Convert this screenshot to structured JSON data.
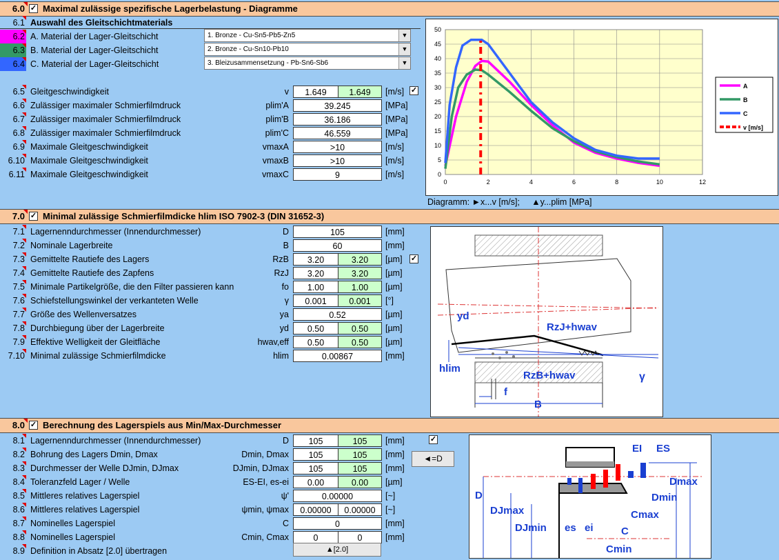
{
  "sec6": {
    "num": "6.0",
    "title": "Maximal zulässige spezifische Lagerbelastung - Diagramme",
    "sub_num": "6.1",
    "sub_title": "Auswahl des Gleitschichtmaterials",
    "materials": [
      {
        "num": "6.2",
        "label": "A. Material der Lager-Gleitschicht",
        "value": "1. Bronze - Cu-Sn5-Pb5-Zn5",
        "color": "#ff00ff"
      },
      {
        "num": "6.3",
        "label": "B. Material der Lager-Gleitschicht",
        "value": "2. Bronze - Cu-Sn10-Pb10",
        "color": "#339966"
      },
      {
        "num": "6.4",
        "label": "C. Material der Lager-Gleitschicht",
        "value": "3. Bleizusammensetzung - Pb-Sn6-Sb6",
        "color": "#3366ff"
      }
    ],
    "rows": [
      {
        "num": "6.5",
        "label": "Gleitgeschwindigkeit",
        "sym": "v",
        "v1": "1.649",
        "v2": "1.649",
        "unit": "[m/s]"
      },
      {
        "num": "6.6",
        "label": "Zulässiger maximaler Schmierfilmdruck",
        "sym": "plim'A",
        "v1": "39.245",
        "unit": "[MPa]"
      },
      {
        "num": "6.7",
        "label": "Zulässiger maximaler Schmierfilmdruck",
        "sym": "plim'B",
        "v1": "36.186",
        "unit": "[MPa]"
      },
      {
        "num": "6.8",
        "label": "Zulässiger maximaler Schmierfilmdruck",
        "sym": "plim'C",
        "v1": "46.559",
        "unit": "[MPa]"
      },
      {
        "num": "6.9",
        "label": "Maximale Gleitgeschwindigkeit",
        "sym": "vmaxA",
        "v1": ">10",
        "unit": "[m/s]"
      },
      {
        "num": "6.10",
        "label": "Maximale Gleitgeschwindigkeit",
        "sym": "vmaxB",
        "v1": ">10",
        "unit": "[m/s]"
      },
      {
        "num": "6.11",
        "label": "Maximale Gleitgeschwindigkeit",
        "sym": "vmaxC",
        "v1": "9",
        "unit": "[m/s]"
      }
    ],
    "diagram_caption": "Diagramm: ►x...v [m/s];     ▲y...plim [MPa]"
  },
  "chart_data": {
    "type": "line",
    "xlim": [
      0,
      12
    ],
    "ylim": [
      0,
      50
    ],
    "x_ticks": [
      "0",
      "2",
      "4",
      "6",
      "8",
      "10",
      "12"
    ],
    "y_ticks": [
      "0",
      "5",
      "10",
      "15",
      "20",
      "25",
      "30",
      "35",
      "40",
      "45",
      "50"
    ],
    "grid": true,
    "legend_position": "right",
    "series": [
      {
        "name": "A",
        "color": "#ff00ff",
        "x": [
          0,
          0.5,
          1.0,
          1.4,
          1.7,
          2.0,
          3,
          4,
          5,
          6,
          7,
          8,
          9,
          10
        ],
        "y": [
          3,
          20,
          32,
          37.5,
          39.2,
          39,
          32,
          24,
          17,
          11,
          7.5,
          5.5,
          4,
          3
        ]
      },
      {
        "name": "B",
        "color": "#339966",
        "x": [
          0,
          0.3,
          0.6,
          1.0,
          1.4,
          1.7,
          2.0,
          3,
          4,
          5,
          6,
          7,
          8,
          9,
          10
        ],
        "y": [
          2,
          20,
          30,
          34.5,
          36.2,
          36,
          34.5,
          28.5,
          22,
          16,
          11.5,
          8,
          6,
          4.5,
          3.5
        ]
      },
      {
        "name": "C",
        "color": "#3366ff",
        "x": [
          0,
          0.2,
          0.5,
          0.8,
          1.2,
          1.7,
          2.0,
          3,
          4,
          5,
          6,
          7,
          8,
          9,
          10
        ],
        "y": [
          4,
          24,
          37,
          44.5,
          46.5,
          46.5,
          45,
          35,
          25,
          18,
          12.5,
          8.5,
          6.5,
          5.5,
          5.5
        ]
      },
      {
        "name": "v [m/s]",
        "color": "#ff0000",
        "x": [
          1.649,
          1.649
        ],
        "y": [
          0,
          47
        ]
      }
    ]
  },
  "sec7": {
    "num": "7.0",
    "title": "Minimal zulässige Schmierfilmdicke hlim ISO 7902-3 (DIN 31652-3)",
    "rows": [
      {
        "num": "7.1",
        "label": "Lagernenndurchmesser (Innendurchmesser)",
        "sym": "D",
        "v1": "105",
        "unit": "[mm]"
      },
      {
        "num": "7.2",
        "label": "Nominale Lagerbreite",
        "sym": "B",
        "v1": "60",
        "unit": "[mm]"
      },
      {
        "num": "7.3",
        "label": "Gemittelte Rautiefe des Lagers",
        "sym": "RzB",
        "v1": "3.20",
        "v2": "3.20",
        "unit": "[µm]"
      },
      {
        "num": "7.4",
        "label": "Gemittelte Rautiefe des Zapfens",
        "sym": "RzJ",
        "v1": "3.20",
        "v2": "3.20",
        "unit": "[µm]"
      },
      {
        "num": "7.5",
        "label": "Minimale Partikelgröße, die den Filter passieren kann",
        "sym": "fo",
        "v1": "1.00",
        "v2": "1.00",
        "unit": "[µm]"
      },
      {
        "num": "7.6",
        "label": "Schiefstellungswinkel der verkanteten Welle",
        "sym": "γ",
        "v1": "0.001",
        "v2": "0.001",
        "unit": "[°]"
      },
      {
        "num": "7.7",
        "label": "Größe des Wellenversatzes",
        "sym": "ya",
        "v1": "0.52",
        "unit": "[µm]"
      },
      {
        "num": "7.8",
        "label": "Durchbiegung über der Lagerbreite",
        "sym": "yd",
        "v1": "0.50",
        "v2": "0.50",
        "unit": "[µm]"
      },
      {
        "num": "7.9",
        "label": "Effektive Welligkeit der Gleitfläche",
        "sym": "hwav,eff",
        "v1": "0.50",
        "v2": "0.50",
        "unit": "[µm]"
      },
      {
        "num": "7.10",
        "label": "Minimal zulässige Schmierfilmdicke",
        "sym": "hlim",
        "v1": "0.00867",
        "unit": "[mm]"
      }
    ],
    "figure_labels": {
      "yd": "yd",
      "rzj": "RzJ+hwav",
      "hlim": "hlim",
      "rzb": "RzB+hwav",
      "gamma": "γ",
      "f": "f",
      "b": "B"
    }
  },
  "sec8": {
    "num": "8.0",
    "title": "Berechnung des Lagerspiels aus Min/Max-Durchmesser",
    "rows": [
      {
        "num": "8.1",
        "label": "Lagernenndurchmesser (Innendurchmesser)",
        "sym": "D",
        "v1": "105",
        "v2": "105",
        "unit": "[mm]"
      },
      {
        "num": "8.2",
        "label": "Bohrung des Lagers Dmin, Dmax",
        "sym": "Dmin, Dmax",
        "v1": "105",
        "v2": "105",
        "unit": "[mm]"
      },
      {
        "num": "8.3",
        "label": "Durchmesser der Welle DJmin, DJmax",
        "sym": "DJmin, DJmax",
        "v1": "105",
        "v2": "105",
        "unit": "[mm]"
      },
      {
        "num": "8.4",
        "label": "Toleranzfeld Lager / Welle",
        "sym": "ES-EI, es-ei",
        "v1": "0.00",
        "v2": "0.00",
        "unit": "[µm]"
      },
      {
        "num": "8.5",
        "label": "Mittleres relatives Lagerspiel",
        "sym": "ψ'",
        "v1": "0.00000",
        "unit": "[~]"
      },
      {
        "num": "8.6",
        "label": "Mittleres relatives Lagerspiel",
        "sym": "ψmin, ψmax",
        "v1": "0.00000",
        "v2": "0.00000",
        "unit": "[~]"
      },
      {
        "num": "8.7",
        "label": "Nominelles Lagerspiel",
        "sym": "C",
        "v1": "0",
        "unit": "[mm]"
      },
      {
        "num": "8.8",
        "label": "Nominelles Lagerspiel",
        "sym": "Cmin, Cmax",
        "v1": "0",
        "v2": "0",
        "unit": "[mm]"
      },
      {
        "num": "8.9",
        "label": "Definition in Absatz [2.0] übertragen"
      }
    ],
    "d_button": "◄=D",
    "transfer_button": "▲[2.0]",
    "figure_labels": {
      "ei_up": "EI",
      "es_up": "ES",
      "dmax": "Dmax",
      "d": "D",
      "dmin": "Dmin",
      "djmax": "DJmax",
      "cmax": "Cmax",
      "djmin": "DJmin",
      "es": "es",
      "ei": "ei",
      "c": "C",
      "cmin": "Cmin"
    }
  }
}
